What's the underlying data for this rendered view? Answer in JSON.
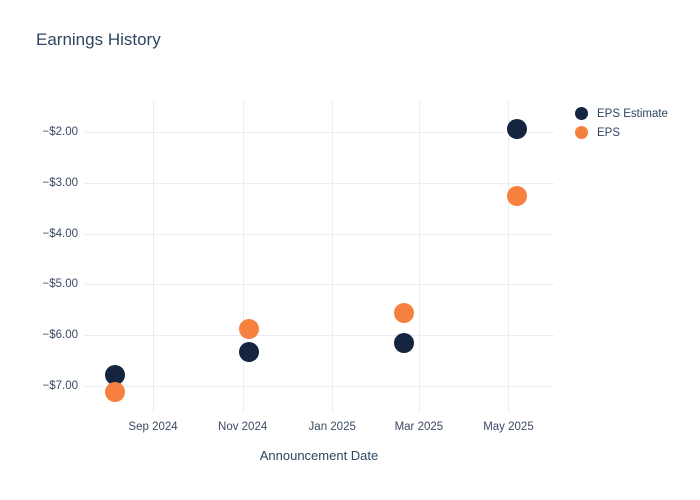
{
  "page": {
    "background": "#ffffff"
  },
  "chart_data": {
    "type": "scatter",
    "title": "Earnings History",
    "xlabel": "Announcement Date",
    "ylabel": "",
    "grid": true,
    "legend_position": "outside-top-right",
    "colors": {
      "eps_estimate": "#152540",
      "eps": "#f6813e",
      "gridline": "#e9eef6",
      "title_text": "#2e4560",
      "tick_text": "#3b4a63",
      "background": "#ffffff"
    },
    "x_axis": {
      "unit": "days since 2024-07-15",
      "range": [
        1,
        321
      ],
      "ticks": [
        {
          "label": "Sep 2024",
          "value": 48
        },
        {
          "label": "Nov 2024",
          "value": 109
        },
        {
          "label": "Jan 2025",
          "value": 170
        },
        {
          "label": "Mar 2025",
          "value": 229
        },
        {
          "label": "May 2025",
          "value": 290
        }
      ]
    },
    "y_axis": {
      "range": [
        -7.54,
        -1.36
      ],
      "ticks": [
        {
          "label": "−$2.00",
          "value": -2
        },
        {
          "label": "−$3.00",
          "value": -3
        },
        {
          "label": "−$4.00",
          "value": -4
        },
        {
          "label": "−$5.00",
          "value": -5
        },
        {
          "label": "−$6.00",
          "value": -6
        },
        {
          "label": "−$7.00",
          "value": -7
        }
      ]
    },
    "series": [
      {
        "name": "EPS Estimate",
        "color": "#152540",
        "points": [
          {
            "date": "Aug 6, 2024",
            "x": 22,
            "y": -6.78
          },
          {
            "date": "Nov 5, 2024",
            "x": 113,
            "y": -6.34
          },
          {
            "date": "Feb 19, 2025",
            "x": 219,
            "y": -6.16
          },
          {
            "date": "May 7, 2025",
            "x": 296,
            "y": -1.94
          }
        ]
      },
      {
        "name": "EPS",
        "color": "#f6813e",
        "points": [
          {
            "date": "Aug 6, 2024",
            "x": 22,
            "y": -7.12
          },
          {
            "date": "Nov 5, 2024",
            "x": 113,
            "y": -5.88
          },
          {
            "date": "Feb 19, 2025",
            "x": 219,
            "y": -5.57
          },
          {
            "date": "May 7, 2025",
            "x": 296,
            "y": -3.26
          }
        ]
      }
    ]
  }
}
